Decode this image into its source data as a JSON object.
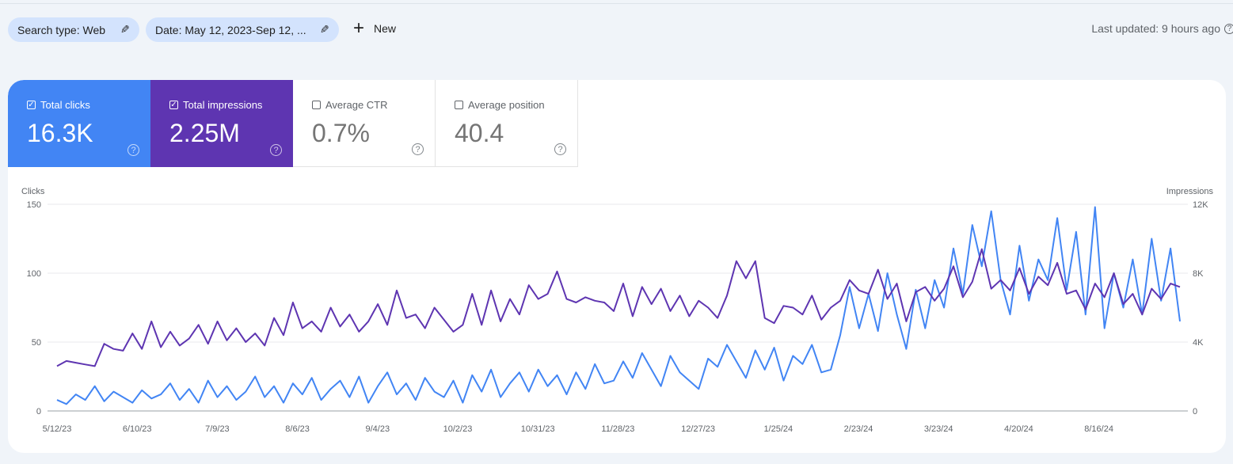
{
  "filters": {
    "search_type": "Search type: Web",
    "date": "Date: May 12, 2023-Sep 12, ...",
    "new_label": "New",
    "last_updated": "Last updated: 9 hours ago"
  },
  "metrics": [
    {
      "label": "Total clicks",
      "value": "16.3K",
      "checked": true,
      "color": "#4285f4"
    },
    {
      "label": "Total impressions",
      "value": "2.25M",
      "checked": true,
      "color": "#5e35b1"
    },
    {
      "label": "Average CTR",
      "value": "0.7%",
      "checked": false
    },
    {
      "label": "Average position",
      "value": "40.4",
      "checked": false
    }
  ],
  "chart_data": {
    "type": "line",
    "left_axis": {
      "label": "Clicks",
      "ticks": [
        "0",
        "50",
        "100",
        "150"
      ],
      "range": [
        0,
        150
      ]
    },
    "right_axis": {
      "label": "Impressions",
      "ticks": [
        "0",
        "4K",
        "8K",
        "12K"
      ],
      "range": [
        0,
        12000
      ]
    },
    "x_ticks": [
      "5/12/23",
      "6/10/23",
      "7/9/23",
      "8/6/23",
      "9/4/23",
      "10/2/23",
      "10/31/23",
      "11/28/23",
      "12/27/23",
      "1/25/24",
      "2/23/24",
      "3/23/24",
      "4/20/24",
      "8/16/24"
    ],
    "grid": true,
    "series": [
      {
        "axis": "left",
        "color": "#4285f4",
        "values": [
          8,
          5,
          12,
          8,
          18,
          7,
          14,
          10,
          6,
          15,
          9,
          12,
          20,
          8,
          16,
          6,
          22,
          10,
          18,
          8,
          14,
          25,
          10,
          18,
          6,
          20,
          12,
          24,
          8,
          16,
          22,
          10,
          25,
          6,
          18,
          28,
          12,
          20,
          8,
          24,
          14,
          10,
          22,
          6,
          26,
          14,
          30,
          10,
          20,
          28,
          14,
          30,
          18,
          26,
          12,
          28,
          16,
          34,
          20,
          22,
          36,
          24,
          42,
          30,
          18,
          40,
          28,
          22,
          16,
          38,
          32,
          48,
          36,
          24,
          44,
          30,
          46,
          22,
          40,
          34,
          48,
          28,
          30,
          55,
          90,
          60,
          85,
          58,
          100,
          70,
          45,
          88,
          60,
          95,
          75,
          118,
          85,
          135,
          105,
          145,
          95,
          70,
          120,
          80,
          110,
          95,
          140,
          88,
          130,
          70,
          148,
          60,
          100,
          75,
          110,
          70,
          125,
          80,
          118,
          65
        ]
      },
      {
        "axis": "right",
        "color": "#5e35b1",
        "values": [
          2600,
          2900,
          2800,
          2700,
          2600,
          3900,
          3600,
          3500,
          4500,
          3600,
          5200,
          3700,
          4600,
          3800,
          4200,
          5000,
          3900,
          5200,
          4100,
          4800,
          4000,
          4500,
          3800,
          5400,
          4400,
          6300,
          4800,
          5200,
          4600,
          6000,
          4900,
          5600,
          4600,
          5200,
          6200,
          5000,
          7000,
          5400,
          5600,
          4800,
          6000,
          5300,
          4600,
          5000,
          6800,
          5000,
          7000,
          5200,
          6500,
          5600,
          7300,
          6500,
          6800,
          8100,
          6500,
          6300,
          6600,
          6400,
          6300,
          5800,
          7400,
          5500,
          7200,
          6200,
          7100,
          5800,
          6700,
          5500,
          6400,
          6000,
          5400,
          6700,
          8700,
          7700,
          8700,
          5400,
          5100,
          6100,
          6000,
          5600,
          6700,
          5300,
          6000,
          6400,
          7600,
          7000,
          6800,
          8200,
          6500,
          7400,
          5200,
          6900,
          7200,
          6400,
          7100,
          8400,
          6600,
          7500,
          9400,
          7100,
          7600,
          7000,
          8300,
          6800,
          7800,
          7300,
          8600,
          6800,
          7000,
          5900,
          7400,
          6600,
          8000,
          6200,
          6800,
          5600,
          7100,
          6500,
          7400,
          7200
        ]
      }
    ]
  }
}
